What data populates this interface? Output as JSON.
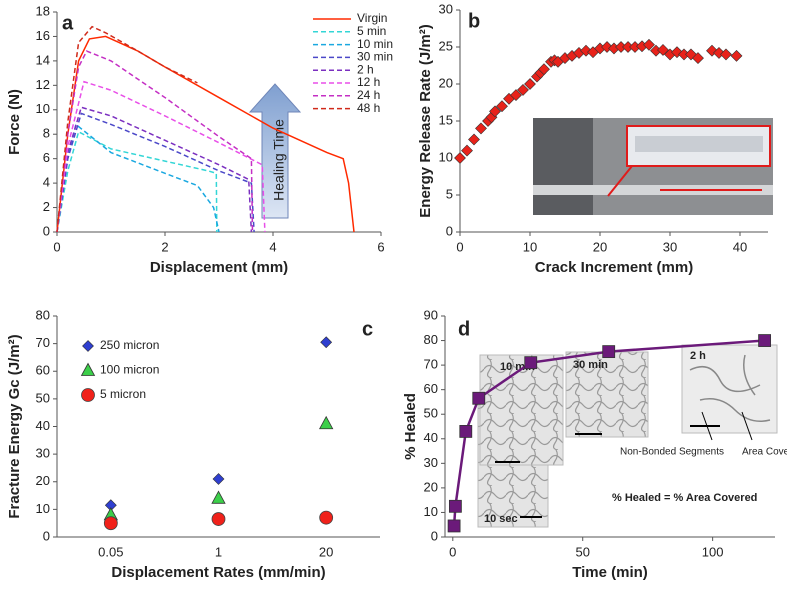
{
  "chart_data": [
    {
      "type": "line",
      "panel_label": "a",
      "x_label": "Displacement (mm)",
      "y_label": "Force (N)",
      "xlim": [
        0,
        6
      ],
      "xticks": [
        0,
        2,
        4,
        6
      ],
      "ylim": [
        0,
        18
      ],
      "yticks": [
        0,
        2,
        4,
        6,
        8,
        10,
        12,
        14,
        16,
        18
      ],
      "legend": "upper right",
      "annotation": "Healing Time",
      "series": [
        {
          "name": "Virgin",
          "color": "#ff2a00",
          "dashed": false,
          "x": [
            0,
            0.2,
            0.4,
            0.6,
            0.9,
            1.5,
            2,
            3,
            4,
            4.5,
            5,
            5.3,
            5.4,
            5.5
          ],
          "values": [
            0,
            8,
            14,
            15.8,
            16,
            14.8,
            13.5,
            11,
            8.5,
            7.5,
            6.5,
            6,
            4,
            0
          ]
        },
        {
          "name": "5 min",
          "color": "#33d6d6",
          "dashed": true,
          "x": [
            0,
            0.2,
            0.4,
            1,
            2,
            2.8,
            2.95,
            2.96
          ],
          "values": [
            0,
            5,
            8.2,
            6.8,
            5.8,
            5,
            4.8,
            0
          ]
        },
        {
          "name": "10 min",
          "color": "#1aa8e0",
          "dashed": true,
          "x": [
            0,
            0.2,
            0.35,
            1,
            2,
            2.6,
            2.9,
            3
          ],
          "values": [
            0,
            6,
            8.8,
            6.5,
            4.8,
            3.8,
            2,
            0
          ]
        },
        {
          "name": "30 min",
          "color": "#4b48c8",
          "dashed": true,
          "x": [
            0,
            0.2,
            0.45,
            1,
            2,
            3,
            3.6,
            3.65
          ],
          "values": [
            0,
            6,
            9.7,
            8.8,
            7,
            5,
            4,
            0
          ]
        },
        {
          "name": "2 h",
          "color": "#7b2fc0",
          "dashed": true,
          "x": [
            0,
            0.2,
            0.45,
            1,
            2,
            3,
            3.55,
            3.6
          ],
          "values": [
            0,
            6.5,
            10.2,
            9.5,
            7.5,
            5.5,
            4.3,
            0
          ]
        },
        {
          "name": "12 h",
          "color": "#e84fe8",
          "dashed": true,
          "x": [
            0,
            0.2,
            0.5,
            1,
            2,
            3,
            3.8,
            3.85
          ],
          "values": [
            0,
            7,
            12.3,
            11.6,
            9.5,
            7.3,
            5.5,
            0
          ]
        },
        {
          "name": "24 h",
          "color": "#c42fc4",
          "dashed": true,
          "x": [
            0,
            0.2,
            0.4,
            0.55,
            1,
            2,
            3,
            3.6,
            3.62
          ],
          "values": [
            0,
            8,
            13.5,
            14.8,
            14,
            11,
            7.8,
            6,
            0
          ]
        },
        {
          "name": "48 h",
          "color": "#d02a1a",
          "dashed": true,
          "x": [
            0,
            0.2,
            0.4,
            0.65,
            0.9,
            1.5,
            2,
            2.6
          ],
          "values": [
            0,
            9,
            15.5,
            16.8,
            16.3,
            14.8,
            13.5,
            12.2
          ]
        }
      ]
    },
    {
      "type": "scatter",
      "panel_label": "b",
      "x_label": "Crack Increment (mm)",
      "y_label": "Energy Release Rate (J/m²)",
      "xlim": [
        0,
        44
      ],
      "xticks": [
        0,
        10,
        20,
        30,
        40
      ],
      "ylim": [
        0,
        30
      ],
      "yticks": [
        0,
        5,
        10,
        15,
        20,
        25,
        30
      ],
      "color": "#e8221a",
      "marker": "diamond",
      "x": [
        0,
        1,
        2,
        3,
        4,
        4.5,
        5,
        6,
        7,
        8,
        9,
        10,
        11,
        11.5,
        12,
        13,
        13.5,
        14,
        15,
        16,
        17,
        18,
        19,
        20,
        21,
        22,
        23,
        24,
        25,
        26,
        27,
        28,
        29,
        30,
        31,
        32,
        33,
        34,
        36,
        37,
        38,
        39.5
      ],
      "values": [
        10,
        11,
        12.5,
        14,
        15,
        15.5,
        16.3,
        17,
        18,
        18.5,
        19.2,
        20,
        21,
        21.5,
        22,
        23,
        23.2,
        23,
        23.5,
        23.8,
        24.2,
        24.5,
        24.3,
        24.8,
        25,
        24.8,
        25,
        25,
        25,
        25.1,
        25.3,
        24.5,
        24.6,
        24,
        24.3,
        24,
        24,
        23.5,
        24.5,
        24.2,
        24,
        23.8
      ]
    },
    {
      "type": "scatter",
      "panel_label": "c",
      "x_label": "Displacement Rates (mm/min)",
      "y_label": "Fracture Energy Gc (J/m²)",
      "categories": [
        "0.05",
        "1",
        "20"
      ],
      "ylim": [
        0,
        80
      ],
      "yticks": [
        0,
        10,
        20,
        30,
        40,
        50,
        60,
        70,
        80
      ],
      "legend": "upper left",
      "series": [
        {
          "name": "250 micron",
          "color": "#2f3fd0",
          "marker": "diamond",
          "values": [
            11.5,
            21,
            70.5
          ]
        },
        {
          "name": "100 micron",
          "color": "#3ccf4a",
          "marker": "triangle",
          "values": [
            8,
            14,
            41
          ]
        },
        {
          "name": "5 micron",
          "color": "#f0211a",
          "marker": "circle",
          "values": [
            5,
            6.5,
            7
          ]
        }
      ]
    },
    {
      "type": "line",
      "panel_label": "d",
      "x_label": "Time (min)",
      "y_label": "% Healed",
      "xlim": [
        -3,
        124
      ],
      "xticks": [
        0,
        50,
        100
      ],
      "ylim": [
        0,
        90
      ],
      "yticks": [
        0,
        10,
        20,
        30,
        40,
        50,
        60,
        70,
        80,
        90
      ],
      "annotations": [
        "10 min",
        "30 min",
        "2 h",
        "10 sec",
        "Non-Bonded Segments",
        "Area Covered By Polymer",
        "% Healed = % Area Covered"
      ],
      "series": [
        {
          "color": "#6b1a7a",
          "marker": "square",
          "dashed": false,
          "x": [
            0.5,
            1,
            5,
            10,
            30,
            60,
            120
          ],
          "values": [
            4.5,
            12.5,
            43,
            56.5,
            71,
            75.5,
            80
          ]
        }
      ]
    }
  ]
}
